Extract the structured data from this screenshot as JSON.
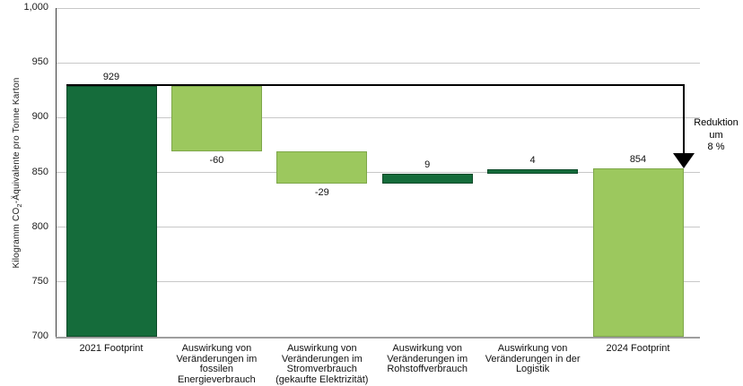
{
  "chart_data": {
    "type": "bar",
    "subtype": "waterfall",
    "title": "",
    "ylabel_parts": {
      "prefix": "Kilogramm CO",
      "sub": "2",
      "suffix": "-Äquivalente pro Tonne Karton"
    },
    "ylabel_full": "Kilogramm CO2-Äquivalente pro Tonne Karton",
    "ylim": [
      700,
      1000
    ],
    "grid": true,
    "yticks": [
      {
        "value": 1000,
        "label": "1,000"
      },
      {
        "value": 950,
        "label": "950"
      },
      {
        "value": 900,
        "label": "900"
      },
      {
        "value": 850,
        "label": "850"
      },
      {
        "value": 800,
        "label": "800"
      },
      {
        "value": 750,
        "label": "750"
      },
      {
        "value": 700,
        "label": "700"
      }
    ],
    "baseline": 700,
    "bars": [
      {
        "category_lines": [
          "2021 Footprint"
        ],
        "value": 929,
        "label": "929",
        "kind": "total",
        "color": "dark"
      },
      {
        "category_lines": [
          "Auswirkung von",
          "Veränderungen im",
          "fossilen",
          "Energieverbrauch"
        ],
        "value": -60,
        "label": "-60",
        "kind": "delta",
        "color": "light"
      },
      {
        "category_lines": [
          "Auswirkung von",
          "Veränderungen im",
          "Stromverbrauch",
          "(gekaufte Elektrizität)"
        ],
        "value": -29,
        "label": "-29",
        "kind": "delta",
        "color": "light"
      },
      {
        "category_lines": [
          "Auswirkung von",
          "Veränderungen im",
          "Rohstoffverbrauch"
        ],
        "value": 9,
        "label": "9",
        "kind": "delta",
        "color": "dark"
      },
      {
        "category_lines": [
          "Auswirkung von",
          "Veränderungen in der",
          "Logistik"
        ],
        "value": 4,
        "label": "4",
        "kind": "delta",
        "color": "dark"
      },
      {
        "category_lines": [
          "2024 Footprint"
        ],
        "value": 854,
        "label": "854",
        "kind": "total",
        "color": "light"
      }
    ],
    "annotation": {
      "line1": "Reduktion um",
      "line2": "8 %",
      "from_value": 929,
      "to_value": 854
    },
    "colors": {
      "dark_green": "#156C3B",
      "light_green": "#9CC85E",
      "dark_border": "#0D4A29",
      "light_border": "#7EA74A",
      "gridline": "#c8c8c8",
      "axis_bottom": "#9e9e9e",
      "axis_left": "#3c3c3c",
      "annotation": "#000000"
    }
  }
}
